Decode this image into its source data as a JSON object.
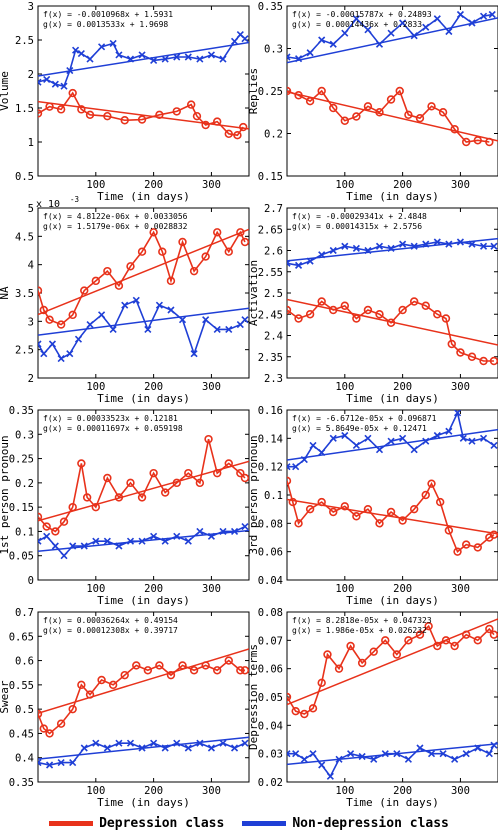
{
  "colors": {
    "depression": "#e8321b",
    "nondepression": "#1f3fd6"
  },
  "legend": {
    "depression_label": "Depression class",
    "nondepression_label": "Non-depression class"
  },
  "chart_data": [
    {
      "type": "line",
      "ylabel": "Volume",
      "xlabel": "Time (in days)",
      "xlim": [
        0,
        365
      ],
      "ylim": [
        0.5,
        3
      ],
      "xticks": [
        "100",
        "200",
        "300"
      ],
      "yticks": [
        "0.5",
        "1",
        "1.5",
        "2",
        "2.5",
        "3"
      ],
      "exponent": "",
      "fit_f": "f(x) = -0.0010968x + 1.5931",
      "fit_g": "g(x) = 0.0013533x + 1.9698",
      "series": [
        {
          "class": "depression",
          "fit": [
            1.5931,
            -0.0010968
          ],
          "x": [
            0,
            20,
            40,
            60,
            75,
            90,
            120,
            150,
            180,
            210,
            240,
            265,
            275,
            290,
            310,
            330,
            345,
            355
          ],
          "y": [
            1.42,
            1.52,
            1.48,
            1.72,
            1.48,
            1.4,
            1.38,
            1.32,
            1.33,
            1.4,
            1.45,
            1.55,
            1.38,
            1.25,
            1.3,
            1.12,
            1.1,
            1.22
          ]
        },
        {
          "class": "nondepression",
          "fit": [
            1.9698,
            0.0013533
          ],
          "x": [
            0,
            15,
            30,
            45,
            55,
            65,
            75,
            90,
            110,
            130,
            140,
            160,
            180,
            200,
            220,
            240,
            260,
            280,
            300,
            320,
            340,
            350,
            358
          ],
          "y": [
            1.88,
            1.92,
            1.85,
            1.82,
            2.05,
            2.35,
            2.3,
            2.22,
            2.4,
            2.45,
            2.28,
            2.22,
            2.28,
            2.2,
            2.22,
            2.25,
            2.25,
            2.22,
            2.28,
            2.22,
            2.48,
            2.58,
            2.52
          ]
        }
      ]
    },
    {
      "type": "line",
      "ylabel": "Replies",
      "xlabel": "Time (in days)",
      "xlim": [
        0,
        365
      ],
      "ylim": [
        0.15,
        0.35
      ],
      "xticks": [
        "100",
        "200",
        "300"
      ],
      "yticks": [
        "0.15",
        "0.2",
        "0.25",
        "0.3",
        "0.35"
      ],
      "exponent": "",
      "fit_f": "f(x) = -0.00015787x + 0.24893",
      "fit_g": "g(x) = 0.00014436x + 0.2833",
      "series": [
        {
          "class": "depression",
          "fit": [
            0.24893,
            -0.00015787
          ],
          "x": [
            0,
            20,
            40,
            60,
            80,
            100,
            120,
            140,
            160,
            180,
            195,
            210,
            230,
            250,
            270,
            290,
            310,
            330,
            350
          ],
          "y": [
            0.25,
            0.245,
            0.238,
            0.25,
            0.23,
            0.215,
            0.22,
            0.232,
            0.225,
            0.24,
            0.25,
            0.222,
            0.218,
            0.232,
            0.225,
            0.205,
            0.19,
            0.192,
            0.19
          ]
        },
        {
          "class": "nondepression",
          "fit": [
            0.2833,
            0.00014436
          ],
          "x": [
            0,
            20,
            40,
            60,
            80,
            100,
            120,
            140,
            160,
            180,
            200,
            220,
            240,
            260,
            280,
            300,
            320,
            340,
            355
          ],
          "y": [
            0.29,
            0.288,
            0.295,
            0.31,
            0.305,
            0.318,
            0.335,
            0.322,
            0.305,
            0.318,
            0.33,
            0.315,
            0.325,
            0.335,
            0.32,
            0.34,
            0.33,
            0.338,
            0.34
          ]
        }
      ]
    },
    {
      "type": "line",
      "ylabel": "NA",
      "xlabel": "Time (in days)",
      "xlim": [
        0,
        365
      ],
      "ylim": [
        0.002,
        0.0055
      ],
      "xticks": [
        "100",
        "200",
        "300"
      ],
      "yticks": [
        "2",
        "2.5",
        "3",
        "3.5",
        "4",
        "4.5",
        "5"
      ],
      "exponent": "x 10",
      "exponent_power": "-3",
      "fit_f": "f(x) = 4.8122e-06x + 0.0033056",
      "fit_g": "g(x) = 1.5179e-06x + 0.0028832",
      "series": [
        {
          "class": "depression",
          "fit": [
            0.0033056,
            4.8122e-06
          ],
          "x": [
            0,
            10,
            20,
            40,
            60,
            80,
            100,
            120,
            140,
            160,
            180,
            200,
            215,
            230,
            250,
            270,
            290,
            310,
            330,
            350,
            358
          ],
          "y": [
            0.0038,
            0.0034,
            0.0032,
            0.0031,
            0.0033,
            0.0038,
            0.004,
            0.0042,
            0.0039,
            0.0043,
            0.0046,
            0.005,
            0.0046,
            0.004,
            0.0048,
            0.0042,
            0.0045,
            0.005,
            0.0046,
            0.005,
            0.0048
          ]
        },
        {
          "class": "nondepression",
          "fit": [
            0.0028832,
            1.5179e-06
          ],
          "x": [
            0,
            10,
            25,
            40,
            55,
            70,
            90,
            110,
            130,
            150,
            170,
            190,
            210,
            230,
            250,
            270,
            290,
            310,
            330,
            350,
            358
          ],
          "y": [
            0.0027,
            0.0025,
            0.0027,
            0.0024,
            0.0025,
            0.0028,
            0.0031,
            0.0033,
            0.003,
            0.0035,
            0.0036,
            0.003,
            0.0035,
            0.0034,
            0.0032,
            0.0025,
            0.0032,
            0.003,
            0.003,
            0.0031,
            0.0032
          ]
        }
      ]
    },
    {
      "type": "line",
      "ylabel": "Activation",
      "xlabel": "Time (in days)",
      "xlim": [
        0,
        365
      ],
      "ylim": [
        2.3,
        2.7
      ],
      "xticks": [
        "100",
        "200",
        "300"
      ],
      "yticks": [
        "2.3",
        "2.35",
        "2.4",
        "2.45",
        "2.5",
        "2.55",
        "2.6",
        "2.65",
        "2.7"
      ],
      "exponent": "",
      "fit_f": "f(x) = -0.00029341x + 2.4848",
      "fit_g": "g(x) = 0.00014315x + 2.5756",
      "series": [
        {
          "class": "depression",
          "fit": [
            2.4848,
            -0.00029341
          ],
          "x": [
            0,
            20,
            40,
            60,
            80,
            100,
            120,
            140,
            160,
            180,
            200,
            220,
            240,
            260,
            275,
            285,
            300,
            320,
            340,
            358
          ],
          "y": [
            2.46,
            2.44,
            2.45,
            2.48,
            2.46,
            2.47,
            2.44,
            2.46,
            2.45,
            2.43,
            2.46,
            2.48,
            2.47,
            2.45,
            2.44,
            2.38,
            2.36,
            2.35,
            2.34,
            2.34
          ]
        },
        {
          "class": "nondepression",
          "fit": [
            2.5756,
            0.00014315
          ],
          "x": [
            0,
            20,
            40,
            60,
            80,
            100,
            120,
            140,
            160,
            180,
            200,
            220,
            240,
            260,
            280,
            300,
            320,
            340,
            358
          ],
          "y": [
            2.57,
            2.565,
            2.575,
            2.59,
            2.6,
            2.61,
            2.605,
            2.6,
            2.61,
            2.605,
            2.615,
            2.61,
            2.615,
            2.62,
            2.615,
            2.62,
            2.615,
            2.61,
            2.61
          ]
        }
      ]
    },
    {
      "type": "line",
      "ylabel": "1st person pronoun",
      "xlabel": "Time (in days)",
      "xlim": [
        0,
        365
      ],
      "ylim": [
        0,
        0.35
      ],
      "xticks": [
        "100",
        "200",
        "300"
      ],
      "yticks": [
        "0",
        "0.05",
        "0.1",
        "0.15",
        "0.2",
        "0.25",
        "0.3",
        "0.35"
      ],
      "exponent": "",
      "fit_f": "f(x) = 0.00033523x + 0.12181",
      "fit_g": "g(x) = 0.00011697x + 0.059198",
      "series": [
        {
          "class": "depression",
          "fit": [
            0.12181,
            0.00033523
          ],
          "x": [
            0,
            15,
            30,
            45,
            60,
            75,
            85,
            100,
            120,
            140,
            160,
            180,
            200,
            220,
            240,
            260,
            280,
            295,
            310,
            330,
            350,
            358
          ],
          "y": [
            0.13,
            0.11,
            0.1,
            0.12,
            0.15,
            0.24,
            0.17,
            0.15,
            0.21,
            0.17,
            0.2,
            0.17,
            0.22,
            0.18,
            0.2,
            0.22,
            0.2,
            0.29,
            0.22,
            0.24,
            0.22,
            0.21
          ]
        },
        {
          "class": "nondepression",
          "fit": [
            0.059198,
            0.00011697
          ],
          "x": [
            0,
            15,
            30,
            45,
            60,
            80,
            100,
            120,
            140,
            160,
            180,
            200,
            220,
            240,
            260,
            280,
            300,
            320,
            340,
            358
          ],
          "y": [
            0.08,
            0.09,
            0.07,
            0.05,
            0.07,
            0.07,
            0.08,
            0.08,
            0.07,
            0.08,
            0.08,
            0.09,
            0.08,
            0.09,
            0.08,
            0.1,
            0.09,
            0.1,
            0.1,
            0.11
          ]
        }
      ]
    },
    {
      "type": "line",
      "ylabel": "3rd person pronoun",
      "xlabel": "Time (in days)",
      "xlim": [
        0,
        365
      ],
      "ylim": [
        0.04,
        0.16
      ],
      "xticks": [
        "100",
        "200",
        "300"
      ],
      "yticks": [
        "0.04",
        "0.06",
        "0.08",
        "0.1",
        "0.12",
        "0.14",
        "0.16"
      ],
      "exponent": "",
      "fit_f": "f(x) = -6.6712e-05x + 0.096871",
      "fit_g": "g(x) = 5.8649e-05x + 0.12471",
      "series": [
        {
          "class": "depression",
          "fit": [
            0.096871,
            -6.6712e-05
          ],
          "x": [
            0,
            10,
            20,
            40,
            60,
            80,
            100,
            120,
            140,
            160,
            180,
            200,
            220,
            240,
            250,
            265,
            280,
            295,
            310,
            330,
            350,
            358
          ],
          "y": [
            0.11,
            0.095,
            0.08,
            0.09,
            0.095,
            0.088,
            0.092,
            0.085,
            0.09,
            0.08,
            0.088,
            0.082,
            0.09,
            0.1,
            0.108,
            0.095,
            0.075,
            0.06,
            0.065,
            0.063,
            0.07,
            0.072
          ]
        },
        {
          "class": "nondepression",
          "fit": [
            0.12471,
            5.8649e-05
          ],
          "x": [
            0,
            15,
            30,
            45,
            60,
            80,
            100,
            120,
            140,
            160,
            180,
            200,
            220,
            240,
            260,
            280,
            295,
            305,
            320,
            340,
            358
          ],
          "y": [
            0.12,
            0.12,
            0.125,
            0.135,
            0.13,
            0.14,
            0.142,
            0.135,
            0.14,
            0.132,
            0.138,
            0.14,
            0.132,
            0.138,
            0.142,
            0.145,
            0.158,
            0.14,
            0.138,
            0.14,
            0.135
          ]
        }
      ]
    },
    {
      "type": "line",
      "ylabel": "Swear",
      "xlabel": "Time (in days)",
      "xlim": [
        0,
        365
      ],
      "ylim": [
        0.35,
        0.7
      ],
      "xticks": [
        "100",
        "200",
        "300"
      ],
      "yticks": [
        "0.35",
        "0.4",
        "0.45",
        "0.5",
        "0.55",
        "0.6",
        "0.65",
        "0.7"
      ],
      "exponent": "",
      "fit_f": "f(x) = 0.00036264x + 0.49154",
      "fit_g": "g(x) = 0.00012308x + 0.39717",
      "series": [
        {
          "class": "depression",
          "fit": [
            0.49154,
            0.00036264
          ],
          "x": [
            0,
            10,
            20,
            40,
            60,
            75,
            90,
            110,
            130,
            150,
            170,
            190,
            210,
            230,
            250,
            270,
            290,
            310,
            330,
            350,
            358
          ],
          "y": [
            0.49,
            0.46,
            0.45,
            0.47,
            0.5,
            0.55,
            0.53,
            0.56,
            0.55,
            0.57,
            0.59,
            0.58,
            0.59,
            0.57,
            0.59,
            0.58,
            0.59,
            0.58,
            0.6,
            0.58,
            0.58
          ]
        },
        {
          "class": "nondepression",
          "fit": [
            0.39717,
            0.00012308
          ],
          "x": [
            0,
            20,
            40,
            60,
            80,
            100,
            120,
            140,
            160,
            180,
            200,
            220,
            240,
            260,
            280,
            300,
            320,
            340,
            358
          ],
          "y": [
            0.39,
            0.385,
            0.39,
            0.39,
            0.42,
            0.43,
            0.42,
            0.43,
            0.43,
            0.42,
            0.43,
            0.42,
            0.43,
            0.42,
            0.43,
            0.42,
            0.43,
            0.42,
            0.43
          ]
        }
      ]
    },
    {
      "type": "line",
      "ylabel": "Depression terms",
      "xlabel": "Time (in days)",
      "xlim": [
        0,
        365
      ],
      "ylim": [
        0.02,
        0.08
      ],
      "xticks": [
        "100",
        "200",
        "300"
      ],
      "yticks": [
        "0.02",
        "0.03",
        "0.04",
        "0.05",
        "0.06",
        "0.07",
        "0.08"
      ],
      "exponent": "",
      "fit_f": "f(x) = 8.2818e-05x + 0.047323",
      "fit_g": "g(x) = 1.986e-05x + 0.026232",
      "series": [
        {
          "class": "depression",
          "fit": [
            0.047323,
            8.2818e-05
          ],
          "x": [
            0,
            15,
            30,
            45,
            60,
            70,
            90,
            110,
            130,
            150,
            170,
            190,
            210,
            230,
            245,
            260,
            275,
            290,
            310,
            330,
            350,
            358
          ],
          "y": [
            0.05,
            0.045,
            0.044,
            0.046,
            0.055,
            0.065,
            0.06,
            0.068,
            0.062,
            0.066,
            0.07,
            0.065,
            0.07,
            0.072,
            0.075,
            0.068,
            0.07,
            0.068,
            0.072,
            0.07,
            0.074,
            0.072
          ]
        },
        {
          "class": "nondepression",
          "fit": [
            0.026232,
            1.986e-05
          ],
          "x": [
            0,
            15,
            30,
            45,
            60,
            75,
            90,
            110,
            130,
            150,
            170,
            190,
            210,
            230,
            250,
            270,
            290,
            310,
            330,
            350,
            358
          ],
          "y": [
            0.03,
            0.03,
            0.028,
            0.03,
            0.026,
            0.022,
            0.028,
            0.03,
            0.029,
            0.028,
            0.03,
            0.03,
            0.028,
            0.032,
            0.03,
            0.03,
            0.028,
            0.03,
            0.032,
            0.03,
            0.033
          ]
        }
      ]
    }
  ]
}
